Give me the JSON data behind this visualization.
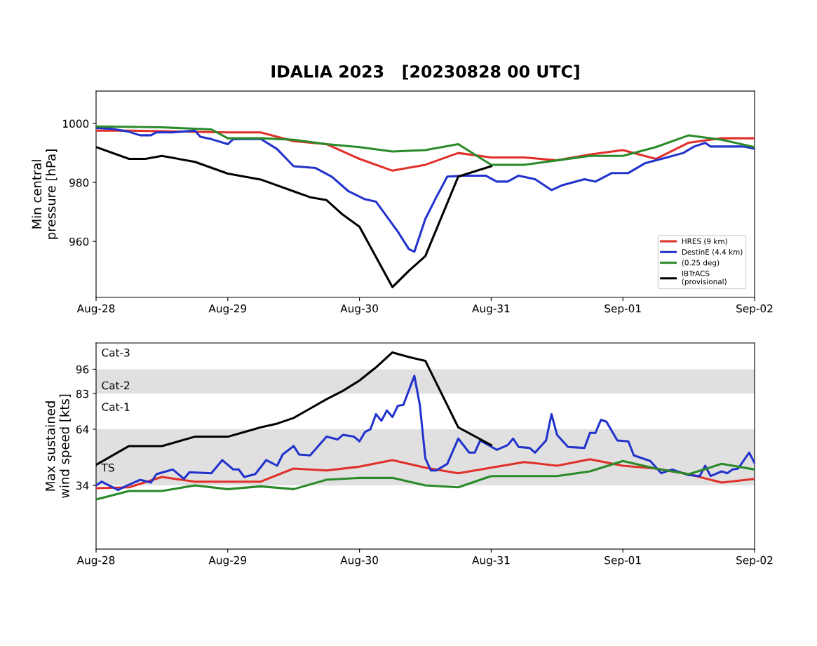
{
  "chart_data": [
    {
      "type": "line",
      "title": "IDALIA 2023   [20230828 00 UTC]",
      "ylabel": "Min central\npressure [hPa]",
      "xlim": [
        "2023-08-28",
        "2023-09-02"
      ],
      "xticks": [
        {
          "value": "2023-08-28",
          "label": "Aug-28"
        },
        {
          "value": "2023-08-29",
          "label": "Aug-29"
        },
        {
          "value": "2023-08-30",
          "label": "Aug-30"
        },
        {
          "value": "2023-08-31",
          "label": "Aug-31"
        },
        {
          "value": "2023-09-01",
          "label": "Sep-01"
        },
        {
          "value": "2023-09-02",
          "label": "Sep-02"
        }
      ],
      "ylim": [
        941,
        1011
      ],
      "yticks": [
        960,
        980,
        1000
      ],
      "grid": false,
      "legend": "bottom right",
      "marker": "none",
      "line_style": "solid",
      "series": [
        {
          "name": "HRES (9 km)",
          "color": "#e0302a",
          "x": [
            "2023-08-28T00:00",
            "2023-08-28T06:00",
            "2023-08-28T12:00",
            "2023-08-29T00:00",
            "2023-08-29T06:00",
            "2023-08-29T12:00",
            "2023-08-29T18:00",
            "2023-08-30T00:00",
            "2023-08-30T06:00",
            "2023-08-30T12:00",
            "2023-08-30T18:00",
            "2023-08-31T00:00",
            "2023-08-31T06:00",
            "2023-08-31T12:00",
            "2023-08-31T18:00",
            "2023-09-01T00:00",
            "2023-09-01T06:00",
            "2023-09-01T12:00",
            "2023-09-01T18:00",
            "2023-09-02T00:00"
          ],
          "values": [
            997.6,
            997.6,
            997.4,
            997,
            997,
            994,
            993,
            988,
            984,
            986,
            990,
            988.5,
            988.5,
            987.5,
            989.5,
            991,
            988,
            993.5,
            995,
            995
          ]
        },
        {
          "name": "DestinE (4.4 km)",
          "color": "#2233cc",
          "x": [
            "2023-08-28T00:00",
            "2023-08-28T03:00",
            "2023-08-28T06:00",
            "2023-08-28T08:00",
            "2023-08-28T10:00",
            "2023-08-28T11:00",
            "2023-08-28T14:00",
            "2023-08-28T18:00",
            "2023-08-28T19:00",
            "2023-08-28T21:00",
            "2023-08-29T00:00",
            "2023-08-29T01:00",
            "2023-08-29T06:00",
            "2023-08-29T09:00",
            "2023-08-29T12:00",
            "2023-08-29T16:00",
            "2023-08-29T19:00",
            "2023-08-29T22:00",
            "2023-08-30T01:00",
            "2023-08-30T03:00",
            "2023-08-30T05:00",
            "2023-08-30T07:00",
            "2023-08-30T09:00",
            "2023-08-30T10:00",
            "2023-08-30T12:00",
            "2023-08-30T14:00",
            "2023-08-30T16:00",
            "2023-08-30T19:00",
            "2023-08-30T23:00",
            "2023-08-31T01:00",
            "2023-08-31T03:00",
            "2023-08-31T05:00",
            "2023-08-31T08:00",
            "2023-08-31T11:00",
            "2023-08-31T13:00",
            "2023-08-31T17:00",
            "2023-08-31T19:00",
            "2023-08-31T22:00",
            "2023-09-01T01:00",
            "2023-09-01T04:00",
            "2023-09-01T08:00",
            "2023-09-01T11:00",
            "2023-09-01T13:00",
            "2023-09-01T15:00",
            "2023-09-01T16:00",
            "2023-09-01T22:00",
            "2023-09-02T00:00"
          ],
          "values": [
            998.5,
            998.2,
            997.2,
            996,
            996,
            997,
            997,
            997.6,
            995.5,
            994.7,
            993,
            994.7,
            994.8,
            991.3,
            985.5,
            984.9,
            981.9,
            977,
            974.3,
            973.5,
            968.4,
            963.3,
            957.4,
            956.5,
            967.6,
            975,
            982,
            982.3,
            982.3,
            980.3,
            980.3,
            982.3,
            981.1,
            977.4,
            979.1,
            981.1,
            980.3,
            983.2,
            983.2,
            986.5,
            988.5,
            990,
            992.2,
            993.4,
            992.2,
            992.2,
            991.4
          ]
        },
        {
          "name": "(0.25 deg)",
          "color": "#2a8a2a",
          "x": [
            "2023-08-28T00:00",
            "2023-08-28T12:00",
            "2023-08-28T21:00",
            "2023-08-29T00:00",
            "2023-08-29T06:00",
            "2023-08-29T12:00",
            "2023-08-29T18:00",
            "2023-08-30T00:00",
            "2023-08-30T06:00",
            "2023-08-30T12:00",
            "2023-08-30T18:00",
            "2023-08-31T00:00",
            "2023-08-31T06:00",
            "2023-08-31T12:00",
            "2023-08-31T18:00",
            "2023-09-01T00:00",
            "2023-09-01T06:00",
            "2023-09-01T12:00",
            "2023-09-01T18:00",
            "2023-09-02T00:00"
          ],
          "values": [
            999,
            998.7,
            998,
            995,
            995,
            994.5,
            993,
            992,
            990.5,
            991,
            993,
            986,
            986,
            987.5,
            989,
            989,
            992,
            996,
            994.5,
            992
          ]
        },
        {
          "name": "IBTrACS\n(provisional)",
          "color": "#000000",
          "x": [
            "2023-08-28T00:00",
            "2023-08-28T06:00",
            "2023-08-28T09:00",
            "2023-08-28T12:00",
            "2023-08-28T18:00",
            "2023-08-29T00:00",
            "2023-08-29T06:00",
            "2023-08-29T12:00",
            "2023-08-29T15:00",
            "2023-08-29T18:00",
            "2023-08-29T21:00",
            "2023-08-30T00:00",
            "2023-08-30T06:00",
            "2023-08-30T09:00",
            "2023-08-30T12:00",
            "2023-08-30T18:00",
            "2023-08-31T00:00"
          ],
          "values": [
            992,
            988,
            988,
            989,
            987,
            983,
            981,
            977,
            975,
            974,
            969,
            965,
            944.5,
            950,
            955,
            982,
            985.5
          ]
        }
      ]
    },
    {
      "type": "line",
      "ylabel": "Max sustained\nwind speed [kts]",
      "xlim": [
        "2023-08-28",
        "2023-09-02"
      ],
      "xticks": [
        {
          "value": "2023-08-28",
          "label": "Aug-28"
        },
        {
          "value": "2023-08-29",
          "label": "Aug-29"
        },
        {
          "value": "2023-08-30",
          "label": "Aug-30"
        },
        {
          "value": "2023-08-31",
          "label": "Aug-31"
        },
        {
          "value": "2023-09-01",
          "label": "Sep-01"
        },
        {
          "value": "2023-09-02",
          "label": "Sep-02"
        }
      ],
      "ylim": [
        0,
        110
      ],
      "yticks": [
        34,
        64,
        83,
        96
      ],
      "grid": false,
      "marker": "none",
      "line_style": "solid",
      "bands": [
        {
          "axis": "y",
          "from": 34,
          "to": 64,
          "label": "TS",
          "color": "#e0e0e0"
        },
        {
          "axis": "y",
          "from": 83,
          "to": 96,
          "label": "Cat-2",
          "color": "#e0e0e0"
        }
      ],
      "annotations": [
        "Cat-1",
        "Cat-3"
      ],
      "series": [
        {
          "color": "#e0302a",
          "x": [
            "2023-08-28T00:00",
            "2023-08-28T06:00",
            "2023-08-28T12:00",
            "2023-08-28T18:00",
            "2023-08-29T06:00",
            "2023-08-29T12:00",
            "2023-08-29T18:00",
            "2023-08-30T00:00",
            "2023-08-30T06:00",
            "2023-08-30T12:00",
            "2023-08-30T18:00",
            "2023-08-31T00:00",
            "2023-08-31T06:00",
            "2023-08-31T12:00",
            "2023-08-31T18:00",
            "2023-09-01T00:00",
            "2023-09-01T06:00",
            "2023-09-01T12:00",
            "2023-09-01T18:00",
            "2023-09-02T00:00"
          ],
          "values": [
            32.5,
            33,
            38.5,
            36,
            36,
            43,
            42,
            44,
            47.5,
            43.5,
            40.5,
            43.5,
            46.5,
            44.5,
            48,
            44.5,
            43,
            40,
            35.5,
            37.5
          ]
        },
        {
          "color": "#2233cc",
          "x": [
            "2023-08-28T00:00",
            "2023-08-28T01:00",
            "2023-08-28T04:00",
            "2023-08-28T05:00",
            "2023-08-28T08:00",
            "2023-08-28T10:00",
            "2023-08-28T11:00",
            "2023-08-28T14:00",
            "2023-08-28T16:00",
            "2023-08-28T17:00",
            "2023-08-28T21:00",
            "2023-08-28T23:00",
            "2023-08-29T01:00",
            "2023-08-29T02:00",
            "2023-08-29T03:00",
            "2023-08-29T05:00",
            "2023-08-29T07:00",
            "2023-08-29T09:00",
            "2023-08-29T10:00",
            "2023-08-29T12:00",
            "2023-08-29T13:00",
            "2023-08-29T15:00",
            "2023-08-29T18:00",
            "2023-08-29T20:00",
            "2023-08-29T21:00",
            "2023-08-29T23:00",
            "2023-08-30T00:00",
            "2023-08-30T01:00",
            "2023-08-30T02:00",
            "2023-08-30T03:00",
            "2023-08-30T04:00",
            "2023-08-30T05:00",
            "2023-08-30T06:00",
            "2023-08-30T07:00",
            "2023-08-30T08:00",
            "2023-08-30T10:00",
            "2023-08-30T11:00",
            "2023-08-30T12:00",
            "2023-08-30T13:00",
            "2023-08-30T14:00",
            "2023-08-30T16:00",
            "2023-08-30T18:00",
            "2023-08-30T20:00",
            "2023-08-30T21:00",
            "2023-08-30T22:00",
            "2023-08-31T01:00",
            "2023-08-31T03:00",
            "2023-08-31T04:00",
            "2023-08-31T05:00",
            "2023-08-31T07:00",
            "2023-08-31T08:00",
            "2023-08-31T10:00",
            "2023-08-31T11:00",
            "2023-08-31T12:00",
            "2023-08-31T14:00",
            "2023-08-31T17:00",
            "2023-08-31T18:00",
            "2023-08-31T19:00",
            "2023-08-31T20:00",
            "2023-08-31T21:00",
            "2023-08-31T23:00",
            "2023-09-01T01:00",
            "2023-09-01T02:00",
            "2023-09-01T05:00",
            "2023-09-01T07:00",
            "2023-09-01T09:00",
            "2023-09-01T12:00",
            "2023-09-01T14:00",
            "2023-09-01T15:00",
            "2023-09-01T16:00",
            "2023-09-01T18:00",
            "2023-09-01T19:00",
            "2023-09-01T20:00",
            "2023-09-01T21:00",
            "2023-09-01T23:00",
            "2023-09-02T00:00"
          ],
          "values": [
            34,
            36,
            31.5,
            33,
            37,
            35.5,
            40,
            42.5,
            37.5,
            41,
            40.5,
            47.5,
            42.5,
            42.5,
            38.5,
            40,
            47.5,
            44.5,
            50.5,
            55,
            50.5,
            50,
            60,
            58.5,
            61,
            60,
            57.5,
            62.5,
            64,
            72,
            68.5,
            74,
            70.5,
            76.5,
            77,
            92.5,
            77,
            48.5,
            42,
            42,
            45.5,
            59,
            51.5,
            51.5,
            58,
            53,
            55.5,
            59,
            54.5,
            54,
            51.5,
            58,
            72,
            61,
            54.5,
            54,
            62,
            62,
            69,
            68,
            58,
            57.5,
            50,
            47,
            40.5,
            42.5,
            39.5,
            39,
            44.5,
            39,
            41.5,
            40.5,
            42.5,
            43,
            51.5,
            46
          ]
        },
        {
          "color": "#2a8a2a",
          "x": [
            "2023-08-28T00:00",
            "2023-08-28T06:00",
            "2023-08-28T12:00",
            "2023-08-28T18:00",
            "2023-08-29T00:00",
            "2023-08-29T06:00",
            "2023-08-29T12:00",
            "2023-08-29T18:00",
            "2023-08-30T00:00",
            "2023-08-30T06:00",
            "2023-08-30T12:00",
            "2023-08-30T18:00",
            "2023-08-31T00:00",
            "2023-08-31T12:00",
            "2023-08-31T18:00",
            "2023-09-01T00:00",
            "2023-09-01T06:00",
            "2023-09-01T12:00",
            "2023-09-01T18:00",
            "2023-09-02T00:00"
          ],
          "values": [
            26.5,
            31,
            31,
            34,
            32,
            33.5,
            32,
            37,
            38,
            38,
            34,
            33,
            39,
            39,
            41.5,
            47,
            43,
            40,
            45.5,
            42.5
          ]
        },
        {
          "color": "#000000",
          "x": [
            "2023-08-28T00:00",
            "2023-08-28T06:00",
            "2023-08-28T12:00",
            "2023-08-28T18:00",
            "2023-08-29T00:00",
            "2023-08-29T03:00",
            "2023-08-29T06:00",
            "2023-08-29T09:00",
            "2023-08-29T12:00",
            "2023-08-29T15:00",
            "2023-08-29T18:00",
            "2023-08-29T21:00",
            "2023-08-30T00:00",
            "2023-08-30T03:00",
            "2023-08-30T06:00",
            "2023-08-30T09:00",
            "2023-08-30T12:00",
            "2023-08-30T18:00",
            "2023-08-31T00:00"
          ],
          "values": [
            45,
            55,
            55,
            60,
            60,
            62.5,
            65,
            67,
            70,
            75,
            80,
            84.5,
            90,
            97,
            105,
            102.5,
            100.5,
            65,
            55.5
          ]
        }
      ]
    }
  ]
}
